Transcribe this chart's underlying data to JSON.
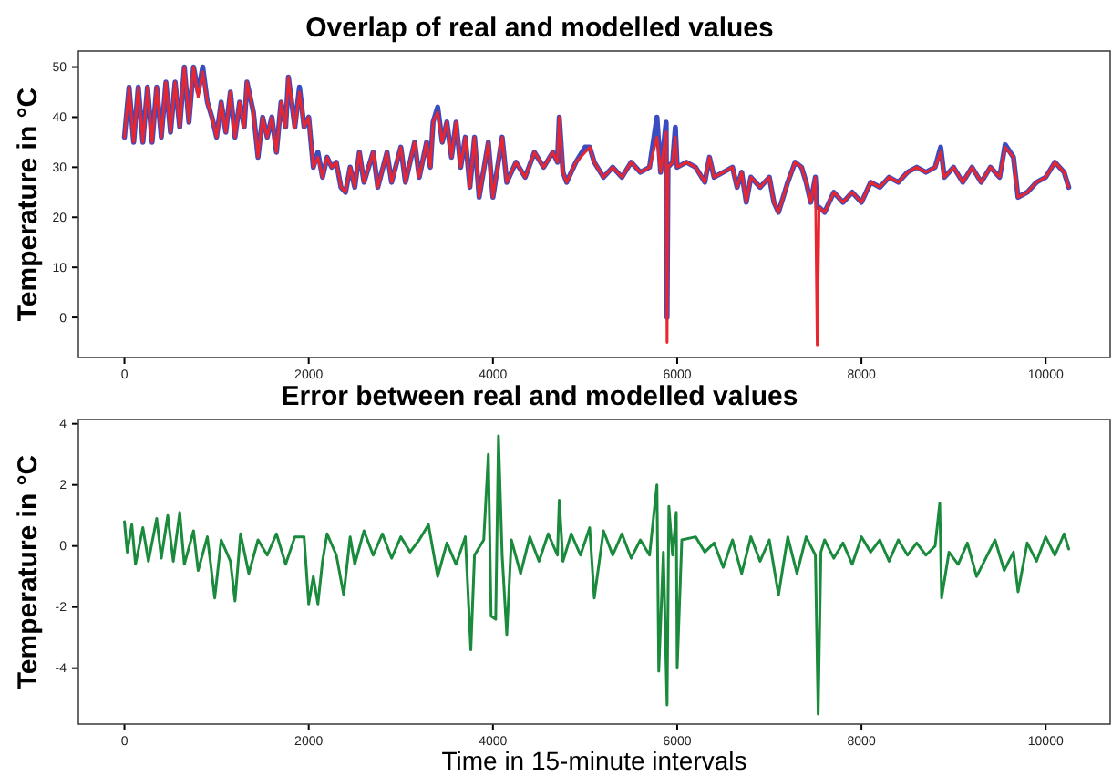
{
  "chart_data": [
    {
      "type": "line",
      "title": "Overlap of real and modelled values",
      "ylabel": "Temperature in °C",
      "xlim": [
        -500,
        10700
      ],
      "ylim": [
        -8,
        53.2
      ],
      "xticks": [
        0,
        2000,
        4000,
        6000,
        8000,
        10000
      ],
      "yticks": [
        0,
        10,
        20,
        30,
        40,
        50
      ],
      "grid": false,
      "series": [
        {
          "color": "#3b4cc0",
          "x": [
            0,
            50,
            100,
            150,
            200,
            250,
            300,
            350,
            400,
            450,
            500,
            550,
            600,
            650,
            700,
            750,
            800,
            850,
            900,
            950,
            1000,
            1050,
            1100,
            1150,
            1200,
            1250,
            1300,
            1330,
            1400,
            1450,
            1500,
            1550,
            1600,
            1650,
            1700,
            1750,
            1780,
            1850,
            1900,
            1950,
            2000,
            2050,
            2100,
            2150,
            2200,
            2250,
            2300,
            2350,
            2400,
            2450,
            2500,
            2550,
            2600,
            2700,
            2750,
            2850,
            2900,
            3000,
            3050,
            3150,
            3200,
            3280,
            3320,
            3350,
            3400,
            3450,
            3500,
            3550,
            3600,
            3650,
            3700,
            3750,
            3800,
            3850,
            3950,
            4000,
            4050,
            4100,
            4150,
            4250,
            4350,
            4450,
            4550,
            4650,
            4700,
            4720,
            4760,
            4800,
            4900,
            5000,
            5050,
            5100,
            5200,
            5300,
            5400,
            5500,
            5600,
            5700,
            5780,
            5820,
            5880,
            5890,
            5900,
            5950,
            5980,
            6000,
            6100,
            6200,
            6300,
            6350,
            6400,
            6500,
            6600,
            6650,
            6700,
            6750,
            6800,
            6900,
            7000,
            7050,
            7100,
            7200,
            7280,
            7350,
            7400,
            7450,
            7500,
            7520,
            7540,
            7600,
            7700,
            7800,
            7900,
            8000,
            8100,
            8200,
            8300,
            8400,
            8500,
            8600,
            8700,
            8800,
            8860,
            8900,
            9000,
            9100,
            9200,
            9300,
            9400,
            9500,
            9560,
            9650,
            9700,
            9800,
            9900,
            10000,
            10100,
            10200,
            10250
          ],
          "values": [
            36,
            46,
            35,
            46,
            35,
            46,
            35,
            46,
            36,
            47,
            37,
            47,
            38,
            50,
            39,
            50,
            45,
            50,
            43,
            40,
            36,
            43,
            37,
            45,
            36,
            43,
            38,
            47,
            41,
            32,
            40,
            36,
            40,
            33,
            43,
            38,
            48,
            38,
            46,
            38,
            40,
            30,
            33,
            28,
            32,
            30,
            31,
            26,
            25,
            30,
            26,
            33,
            27,
            33,
            26,
            33,
            27,
            34,
            27,
            35,
            28,
            35,
            30,
            39,
            42,
            35,
            39,
            32,
            39,
            30,
            36,
            26,
            36,
            24,
            35,
            24,
            30,
            36,
            27,
            31,
            28,
            33,
            30,
            33,
            31,
            40,
            29,
            27,
            31,
            34,
            34,
            31,
            28,
            30,
            28,
            31,
            29,
            30,
            40,
            29,
            39,
            0,
            30,
            31,
            38,
            30,
            31,
            30,
            27,
            32,
            28,
            29,
            30,
            26,
            29,
            23,
            28,
            26,
            28,
            23,
            21,
            27,
            31,
            30,
            27,
            23,
            28,
            22,
            22,
            21,
            25,
            23,
            25,
            23,
            27,
            26,
            28,
            27,
            29,
            30,
            29,
            30,
            34,
            28,
            30,
            27,
            30,
            27,
            30,
            28,
            34.5,
            32,
            24,
            25,
            27,
            28,
            31,
            29,
            26
          ]
        },
        {
          "color": "#e8262f",
          "x": [
            0,
            50,
            100,
            150,
            200,
            250,
            300,
            350,
            400,
            450,
            500,
            550,
            600,
            650,
            700,
            750,
            800,
            850,
            900,
            950,
            1000,
            1050,
            1100,
            1150,
            1200,
            1250,
            1300,
            1330,
            1400,
            1450,
            1500,
            1550,
            1600,
            1650,
            1700,
            1750,
            1780,
            1850,
            1900,
            1950,
            2000,
            2050,
            2100,
            2150,
            2200,
            2250,
            2300,
            2350,
            2400,
            2450,
            2500,
            2550,
            2600,
            2700,
            2750,
            2850,
            2900,
            3000,
            3050,
            3150,
            3200,
            3280,
            3320,
            3350,
            3400,
            3450,
            3500,
            3550,
            3600,
            3650,
            3700,
            3750,
            3800,
            3850,
            3950,
            4000,
            4050,
            4100,
            4150,
            4250,
            4350,
            4450,
            4550,
            4650,
            4700,
            4720,
            4760,
            4800,
            4900,
            5000,
            5050,
            5100,
            5200,
            5300,
            5400,
            5500,
            5600,
            5700,
            5780,
            5820,
            5880,
            5890,
            5900,
            5950,
            5980,
            6000,
            6100,
            6200,
            6300,
            6350,
            6400,
            6500,
            6600,
            6650,
            6700,
            6750,
            6800,
            6900,
            7000,
            7050,
            7100,
            7200,
            7280,
            7350,
            7400,
            7450,
            7500,
            7520,
            7540,
            7600,
            7700,
            7800,
            7900,
            8000,
            8100,
            8200,
            8300,
            8400,
            8500,
            8600,
            8700,
            8800,
            8860,
            8900,
            9000,
            9100,
            9200,
            9300,
            9400,
            9500,
            9560,
            9650,
            9700,
            9800,
            9900,
            10000,
            10100,
            10200,
            10250
          ],
          "values": [
            36,
            46,
            35,
            46,
            35,
            46,
            35,
            46,
            36,
            47,
            37,
            47,
            38,
            50,
            39,
            50,
            44,
            49,
            43,
            40,
            36,
            43,
            37,
            45,
            36,
            43,
            38,
            47,
            41,
            32,
            40,
            36,
            40,
            33,
            43,
            38,
            48,
            38,
            45,
            38,
            40,
            30,
            32,
            28,
            32,
            30,
            31,
            26,
            25,
            30,
            26,
            33,
            27,
            33,
            26,
            33,
            27,
            34,
            27,
            35,
            28,
            35,
            30,
            39,
            41,
            35,
            39,
            32,
            39,
            30,
            36,
            26,
            36,
            24,
            35,
            24,
            30,
            36,
            27,
            31,
            28,
            33,
            30,
            33,
            31,
            40,
            29,
            27,
            31,
            33,
            34,
            31,
            28,
            30,
            28,
            31,
            29,
            30,
            36,
            29,
            37,
            -5,
            30,
            31,
            36,
            30,
            31,
            30,
            27,
            32,
            28,
            29,
            30,
            26,
            29,
            23,
            28,
            26,
            28,
            23,
            21,
            27,
            31,
            30,
            27,
            23,
            28,
            -5.5,
            22,
            21,
            25,
            23,
            25,
            23,
            27,
            26,
            28,
            27,
            29,
            30,
            29,
            30,
            33,
            28,
            30,
            27,
            30,
            27,
            30,
            28,
            34,
            32,
            24,
            25,
            27,
            28,
            31,
            29,
            26
          ]
        }
      ],
      "tick_labels": true
    },
    {
      "type": "line",
      "title": "Error between real and modelled values",
      "xlabel": "Time in 15-minute intervals",
      "ylabel": "Temperature in °C",
      "xlim": [
        -500,
        10700
      ],
      "ylim": [
        -5.83,
        4.14
      ],
      "xticks": [
        0,
        2000,
        4000,
        6000,
        8000,
        10000
      ],
      "yticks": [
        -4,
        -2,
        0,
        2,
        4
      ],
      "grid": false,
      "series": [
        {
          "color": "#1a8a3c",
          "x": [
            0,
            30,
            80,
            120,
            200,
            260,
            350,
            400,
            470,
            530,
            600,
            650,
            750,
            800,
            900,
            980,
            1050,
            1150,
            1200,
            1260,
            1350,
            1450,
            1550,
            1650,
            1750,
            1850,
            1950,
            2000,
            2050,
            2100,
            2150,
            2200,
            2300,
            2380,
            2450,
            2500,
            2600,
            2700,
            2800,
            2900,
            3000,
            3100,
            3200,
            3300,
            3400,
            3500,
            3600,
            3700,
            3760,
            3800,
            3900,
            3950,
            3980,
            4030,
            4060,
            4100,
            4150,
            4200,
            4300,
            4400,
            4500,
            4600,
            4700,
            4720,
            4760,
            4850,
            4950,
            5050,
            5100,
            5200,
            5300,
            5400,
            5500,
            5600,
            5700,
            5780,
            5800,
            5850,
            5890,
            5910,
            5950,
            5990,
            6000,
            6050,
            6200,
            6300,
            6400,
            6500,
            6600,
            6700,
            6800,
            6900,
            7000,
            7100,
            7200,
            7300,
            7400,
            7500,
            7530,
            7560,
            7600,
            7700,
            7800,
            7900,
            8000,
            8100,
            8200,
            8300,
            8400,
            8500,
            8600,
            8700,
            8800,
            8850,
            8870,
            8950,
            9050,
            9150,
            9250,
            9350,
            9450,
            9550,
            9650,
            9700,
            9800,
            9900,
            10000,
            10100,
            10200,
            10250
          ],
          "values": [
            0.8,
            -0.2,
            0.7,
            -0.6,
            0.6,
            -0.5,
            0.9,
            -0.4,
            1.0,
            -0.5,
            1.1,
            -0.6,
            0.5,
            -0.8,
            0.3,
            -1.7,
            0.2,
            -0.5,
            -1.8,
            0.4,
            -0.9,
            0.2,
            -0.3,
            0.4,
            -0.6,
            0.3,
            0.3,
            -1.9,
            -1.0,
            -1.9,
            -0.5,
            0.4,
            -0.3,
            -1.6,
            0.3,
            -0.6,
            0.5,
            -0.3,
            0.4,
            -0.4,
            0.3,
            -0.2,
            0.2,
            0.7,
            -1.0,
            0.1,
            -0.6,
            0.3,
            -3.4,
            -0.3,
            0.2,
            3.0,
            -2.3,
            -2.4,
            3.6,
            -0.3,
            -2.9,
            0.2,
            -0.9,
            0.3,
            -0.5,
            0.4,
            -0.3,
            1.5,
            -0.5,
            0.4,
            -0.3,
            0.6,
            -1.7,
            0.5,
            -0.3,
            0.4,
            -0.4,
            0.2,
            -0.3,
            2.0,
            -4.1,
            -0.2,
            -5.2,
            1.3,
            -0.3,
            1.1,
            -4.0,
            0.2,
            0.3,
            -0.2,
            0.1,
            -0.7,
            0.2,
            -0.9,
            0.3,
            -0.5,
            0.2,
            -1.6,
            0.3,
            -0.9,
            0.3,
            -0.3,
            -5.5,
            -0.2,
            0.2,
            -0.4,
            0.1,
            -0.6,
            0.3,
            -0.2,
            0.2,
            -0.5,
            0.2,
            -0.3,
            0.1,
            -0.3,
            0.0,
            1.4,
            -1.7,
            -0.2,
            -0.6,
            0.1,
            -1.0,
            -0.4,
            0.2,
            -0.8,
            -0.2,
            -1.5,
            0.1,
            -0.5,
            0.3,
            -0.3,
            0.4,
            -0.1
          ]
        }
      ],
      "tick_labels": true
    }
  ]
}
